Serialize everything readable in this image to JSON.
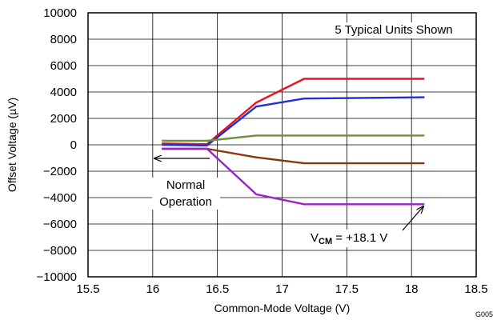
{
  "chart_data": {
    "type": "line",
    "title": "",
    "xlabel": "Common-Mode Voltage (V)",
    "ylabel": "Offset Voltage (µV)",
    "xlim": [
      15.5,
      18.5
    ],
    "ylim": [
      -10000,
      10000
    ],
    "x_ticks": [
      15.5,
      16,
      16.5,
      17,
      17.5,
      18,
      18.5
    ],
    "x_tick_labels": [
      "15.5",
      "16",
      "16.5",
      "17",
      "17.5",
      "18",
      "18.5"
    ],
    "y_ticks": [
      -10000,
      -8000,
      -6000,
      -4000,
      -2000,
      0,
      2000,
      4000,
      6000,
      8000,
      10000
    ],
    "y_tick_labels": [
      "−10000",
      "−8000",
      "−6000",
      "−4000",
      "−2000",
      "0",
      "2000",
      "4000",
      "6000",
      "8000",
      "10000"
    ],
    "grid": true,
    "series": [
      {
        "color": "#e8141c",
        "x": [
          16.07,
          16.42,
          16.8,
          17.17,
          18.1
        ],
        "y": [
          100,
          50,
          3200,
          5000,
          5000
        ]
      },
      {
        "color": "#1f2fd0",
        "x": [
          16.07,
          16.42,
          16.8,
          17.17,
          18.1
        ],
        "y": [
          0,
          -50,
          2900,
          3500,
          3600
        ]
      },
      {
        "color": "#6f8f3a",
        "x": [
          16.07,
          16.42,
          16.8,
          17.17,
          18.1
        ],
        "y": [
          300,
          300,
          700,
          700,
          700
        ]
      },
      {
        "color": "#8a3510",
        "x": [
          16.07,
          16.42,
          16.8,
          17.17,
          18.1
        ],
        "y": [
          -300,
          -300,
          -950,
          -1400,
          -1400
        ]
      },
      {
        "color": "#9a22c8",
        "x": [
          16.07,
          16.42,
          16.8,
          17.17,
          18.1
        ],
        "y": [
          -300,
          -300,
          -3750,
          -4500,
          -4500
        ]
      }
    ],
    "annotations": {
      "units_note": "5 Typical Units Shown",
      "normal_line1": "Normal",
      "normal_line2": "Operation",
      "vcm_prefix": "V",
      "vcm_sub": "CM",
      "vcm_value": " = +18.1 V"
    },
    "figure_id": "G005"
  }
}
